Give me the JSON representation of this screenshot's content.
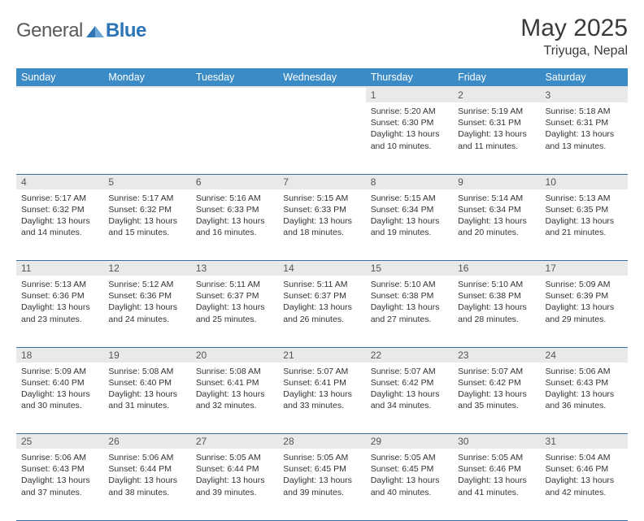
{
  "logo": {
    "general": "General",
    "blue": "Blue"
  },
  "title": "May 2025",
  "location": "Triyuga, Nepal",
  "header_bg": "#3b8bc7",
  "daynum_bg": "#e9e9e9",
  "weekdays": [
    "Sunday",
    "Monday",
    "Tuesday",
    "Wednesday",
    "Thursday",
    "Friday",
    "Saturday"
  ],
  "weeks": [
    [
      null,
      null,
      null,
      null,
      {
        "n": "1",
        "sr": "5:20 AM",
        "ss": "6:30 PM",
        "dl": "13 hours and 10 minutes."
      },
      {
        "n": "2",
        "sr": "5:19 AM",
        "ss": "6:31 PM",
        "dl": "13 hours and 11 minutes."
      },
      {
        "n": "3",
        "sr": "5:18 AM",
        "ss": "6:31 PM",
        "dl": "13 hours and 13 minutes."
      }
    ],
    [
      {
        "n": "4",
        "sr": "5:17 AM",
        "ss": "6:32 PM",
        "dl": "13 hours and 14 minutes."
      },
      {
        "n": "5",
        "sr": "5:17 AM",
        "ss": "6:32 PM",
        "dl": "13 hours and 15 minutes."
      },
      {
        "n": "6",
        "sr": "5:16 AM",
        "ss": "6:33 PM",
        "dl": "13 hours and 16 minutes."
      },
      {
        "n": "7",
        "sr": "5:15 AM",
        "ss": "6:33 PM",
        "dl": "13 hours and 18 minutes."
      },
      {
        "n": "8",
        "sr": "5:15 AM",
        "ss": "6:34 PM",
        "dl": "13 hours and 19 minutes."
      },
      {
        "n": "9",
        "sr": "5:14 AM",
        "ss": "6:34 PM",
        "dl": "13 hours and 20 minutes."
      },
      {
        "n": "10",
        "sr": "5:13 AM",
        "ss": "6:35 PM",
        "dl": "13 hours and 21 minutes."
      }
    ],
    [
      {
        "n": "11",
        "sr": "5:13 AM",
        "ss": "6:36 PM",
        "dl": "13 hours and 23 minutes."
      },
      {
        "n": "12",
        "sr": "5:12 AM",
        "ss": "6:36 PM",
        "dl": "13 hours and 24 minutes."
      },
      {
        "n": "13",
        "sr": "5:11 AM",
        "ss": "6:37 PM",
        "dl": "13 hours and 25 minutes."
      },
      {
        "n": "14",
        "sr": "5:11 AM",
        "ss": "6:37 PM",
        "dl": "13 hours and 26 minutes."
      },
      {
        "n": "15",
        "sr": "5:10 AM",
        "ss": "6:38 PM",
        "dl": "13 hours and 27 minutes."
      },
      {
        "n": "16",
        "sr": "5:10 AM",
        "ss": "6:38 PM",
        "dl": "13 hours and 28 minutes."
      },
      {
        "n": "17",
        "sr": "5:09 AM",
        "ss": "6:39 PM",
        "dl": "13 hours and 29 minutes."
      }
    ],
    [
      {
        "n": "18",
        "sr": "5:09 AM",
        "ss": "6:40 PM",
        "dl": "13 hours and 30 minutes."
      },
      {
        "n": "19",
        "sr": "5:08 AM",
        "ss": "6:40 PM",
        "dl": "13 hours and 31 minutes."
      },
      {
        "n": "20",
        "sr": "5:08 AM",
        "ss": "6:41 PM",
        "dl": "13 hours and 32 minutes."
      },
      {
        "n": "21",
        "sr": "5:07 AM",
        "ss": "6:41 PM",
        "dl": "13 hours and 33 minutes."
      },
      {
        "n": "22",
        "sr": "5:07 AM",
        "ss": "6:42 PM",
        "dl": "13 hours and 34 minutes."
      },
      {
        "n": "23",
        "sr": "5:07 AM",
        "ss": "6:42 PM",
        "dl": "13 hours and 35 minutes."
      },
      {
        "n": "24",
        "sr": "5:06 AM",
        "ss": "6:43 PM",
        "dl": "13 hours and 36 minutes."
      }
    ],
    [
      {
        "n": "25",
        "sr": "5:06 AM",
        "ss": "6:43 PM",
        "dl": "13 hours and 37 minutes."
      },
      {
        "n": "26",
        "sr": "5:06 AM",
        "ss": "6:44 PM",
        "dl": "13 hours and 38 minutes."
      },
      {
        "n": "27",
        "sr": "5:05 AM",
        "ss": "6:44 PM",
        "dl": "13 hours and 39 minutes."
      },
      {
        "n": "28",
        "sr": "5:05 AM",
        "ss": "6:45 PM",
        "dl": "13 hours and 39 minutes."
      },
      {
        "n": "29",
        "sr": "5:05 AM",
        "ss": "6:45 PM",
        "dl": "13 hours and 40 minutes."
      },
      {
        "n": "30",
        "sr": "5:05 AM",
        "ss": "6:46 PM",
        "dl": "13 hours and 41 minutes."
      },
      {
        "n": "31",
        "sr": "5:04 AM",
        "ss": "6:46 PM",
        "dl": "13 hours and 42 minutes."
      }
    ]
  ],
  "labels": {
    "sunrise": "Sunrise:",
    "sunset": "Sunset:",
    "daylight": "Daylight:"
  }
}
